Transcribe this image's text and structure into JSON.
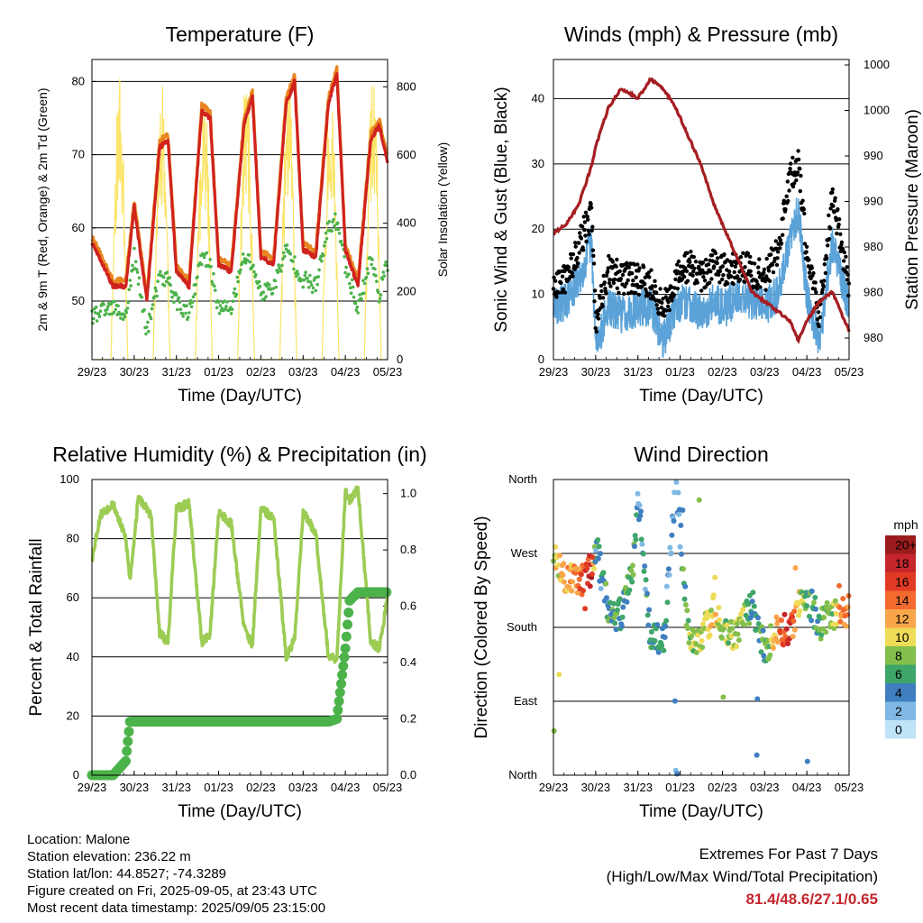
{
  "x_ticks": [
    "29/23",
    "30/23",
    "31/23",
    "01/23",
    "02/23",
    "03/23",
    "04/23",
    "05/23"
  ],
  "colors": {
    "temp_2m": "#e8851f",
    "temp_9m": "#d0231e",
    "dewpoint": "#4cb24a",
    "solar": "#fbe467",
    "wind": "#5aa2d8",
    "gust": "#000000",
    "pressure": "#a51e22",
    "rh": "#9ccc54",
    "precip": "#4cb24a"
  },
  "panels": {
    "temperature": {
      "title": "Temperature (F)",
      "xlabel": "Time (Day/UTC)",
      "ylabel_left": "2m & 9m T (Red, Orange) & 2m Td (Green)",
      "ylabel_right": "Solar Insolation (Yellow)",
      "left_ticks": [
        "50",
        "60",
        "70",
        "80"
      ],
      "right_ticks": [
        "0",
        "200",
        "400",
        "600",
        "800"
      ]
    },
    "winds": {
      "title": "Winds (mph) & Pressure (mb)",
      "xlabel": "Time (Day/UTC)",
      "ylabel_left": "Sonic Wind & Gust (Blue, Black)",
      "ylabel_right": "Station Pressure (Maroon)",
      "left_ticks": [
        "0",
        "10",
        "20",
        "30",
        "40"
      ],
      "right_ticks": [
        "980",
        "980",
        "980",
        "990",
        "990",
        "1000",
        "1000"
      ]
    },
    "humidity": {
      "title": "Relative Humidity (%) & Precipitation (in)",
      "xlabel": "Time (Day/UTC)",
      "ylabel_left": "Percent & Total Rainfall",
      "left_ticks": [
        "0",
        "20",
        "40",
        "60",
        "80",
        "100"
      ],
      "right_ticks": [
        "0.0",
        "0.2",
        "0.4",
        "0.6",
        "0.8",
        "1.0"
      ]
    },
    "direction": {
      "title": "Wind Direction",
      "xlabel": "Time (Day/UTC)",
      "ylabel_left": "Direction (Colored By Speed)",
      "left_ticks": [
        "North",
        "East",
        "South",
        "West",
        "North"
      ],
      "colorbar_title": "mph",
      "colorbar_labels": [
        "20+",
        "18",
        "16",
        "14",
        "12",
        "10",
        "8",
        "6",
        "4",
        "2",
        "0"
      ],
      "colorbar_colors": [
        "#9c1b1c",
        "#c4262c",
        "#e13a24",
        "#f26a2e",
        "#f9a64b",
        "#eedb57",
        "#83bf4b",
        "#3fa66a",
        "#3f7fc0",
        "#7fb8e4",
        "#bfe3f7"
      ]
    }
  },
  "info": {
    "location": "Location: Malone",
    "elevation": "Station elevation: 236.22 m",
    "latlon": "Station lat/lon: 44.8527; -74.3289",
    "created": "Figure created on Fri, 2025-09-05, at 23:43 UTC",
    "recent": "Most recent data timestamp: 2025/09/05 23:15:00"
  },
  "extremes": {
    "title": "Extremes For Past 7 Days",
    "subtitle": "(High/Low/Max Wind/Total Precipitation)",
    "value": "81.4/48.6/27.1/0.65"
  },
  "chart_data": [
    {
      "type": "line",
      "name": "temperature",
      "x_days": [
        0,
        0.5,
        0.8,
        1.0,
        1.3,
        1.6,
        1.8,
        2.0,
        2.3,
        2.6,
        2.8,
        3.0,
        3.3,
        3.6,
        3.8,
        4.0,
        4.3,
        4.6,
        4.8,
        5.0,
        5.3,
        5.6,
        5.8,
        6.0,
        6.3,
        6.6,
        6.8,
        7.0
      ],
      "series": [
        {
          "name": "9m T",
          "values": [
            58,
            52,
            52,
            63,
            50,
            71,
            72,
            54,
            52,
            76,
            75,
            55,
            54,
            74,
            78,
            56,
            55,
            77,
            80,
            57,
            56,
            77,
            81,
            57,
            52,
            72,
            74,
            69
          ]
        },
        {
          "name": "Td",
          "values": [
            48,
            49,
            48,
            56,
            46,
            53,
            53,
            50,
            48,
            56,
            55,
            49,
            49,
            56,
            55,
            51,
            52,
            57,
            55,
            53,
            52,
            60,
            61,
            55,
            49,
            56,
            51,
            55
          ]
        },
        {
          "name": "Solar",
          "values": [
            0,
            0,
            800,
            0,
            0,
            800,
            0,
            0,
            0,
            840,
            0,
            0,
            0,
            840,
            0,
            0,
            0,
            850,
            0,
            0,
            0,
            860,
            0,
            0,
            0,
            820,
            0,
            0
          ]
        }
      ],
      "xlim": [
        0,
        7
      ],
      "ylim_left": [
        42,
        83
      ],
      "ylim_right": [
        0,
        880
      ]
    },
    {
      "type": "line",
      "name": "winds",
      "x_days": [
        0,
        0.3,
        0.6,
        0.9,
        1.0,
        1.3,
        1.6,
        2.0,
        2.3,
        2.6,
        2.9,
        3.2,
        3.5,
        3.8,
        4.1,
        4.4,
        4.7,
        5.0,
        5.3,
        5.6,
        5.8,
        6.0,
        6.3,
        6.6,
        7.0
      ],
      "series": [
        {
          "name": "Wind",
          "values": [
            8,
            9,
            12,
            18,
            2,
            8,
            7,
            8,
            8,
            3,
            8,
            9,
            7,
            9,
            8,
            10,
            9,
            8,
            10,
            18,
            23,
            10,
            3,
            18,
            8
          ]
        },
        {
          "name": "Gust",
          "values": [
            11,
            12,
            17,
            22,
            5,
            13,
            12,
            12,
            11,
            7,
            12,
            14,
            12,
            14,
            13,
            14,
            13,
            12,
            16,
            27,
            30,
            15,
            6,
            25,
            11
          ]
        },
        {
          "name": "Pressure",
          "values": [
            986,
            987,
            989,
            993,
            995,
            999,
            1001,
            1000,
            1002,
            1001,
            999,
            996,
            993,
            989,
            986,
            983,
            980,
            979,
            978,
            977,
            975,
            977,
            979,
            980,
            976
          ]
        }
      ],
      "xlim": [
        0,
        7
      ],
      "ylim_left": [
        0,
        46
      ],
      "ylim_right": [
        973,
        1004
      ]
    },
    {
      "type": "line",
      "name": "humidity",
      "x_days": [
        0,
        0.2,
        0.5,
        0.8,
        0.9,
        1.1,
        1.4,
        1.6,
        1.8,
        2.0,
        2.3,
        2.6,
        2.8,
        3.0,
        3.3,
        3.6,
        3.8,
        4.0,
        4.3,
        4.6,
        4.8,
        5.0,
        5.3,
        5.6,
        5.8,
        6.0,
        6.1,
        6.3,
        6.6,
        6.8,
        7.0
      ],
      "series": [
        {
          "name": "RH",
          "values": [
            73,
            88,
            92,
            80,
            66,
            94,
            88,
            48,
            45,
            90,
            92,
            45,
            48,
            89,
            85,
            50,
            44,
            90,
            87,
            40,
            46,
            89,
            82,
            40,
            39,
            96,
            93,
            97,
            45,
            43,
            60
          ]
        },
        {
          "name": "Precip",
          "values": [
            0,
            0,
            0,
            0.05,
            0.19,
            0.19,
            0.19,
            0.19,
            0.19,
            0.19,
            0.19,
            0.19,
            0.19,
            0.19,
            0.19,
            0.19,
            0.19,
            0.19,
            0.19,
            0.19,
            0.19,
            0.19,
            0.19,
            0.19,
            0.2,
            0.45,
            0.62,
            0.65,
            0.65,
            0.65,
            0.65
          ]
        }
      ],
      "xlim": [
        0,
        7
      ],
      "ylim_left": [
        0,
        100
      ],
      "ylim_right": [
        0,
        1.05
      ]
    },
    {
      "type": "scatter",
      "name": "wind direction",
      "x_days": [
        0,
        0.3,
        0.6,
        0.9,
        1.0,
        1.3,
        1.6,
        1.9,
        2.0,
        2.3,
        2.6,
        2.9,
        3.2,
        3.5,
        3.8,
        4.1,
        4.4,
        4.7,
        5.0,
        5.3,
        5.6,
        5.8,
        6.0,
        6.3,
        6.6,
        6.8,
        7.0
      ],
      "series": [
        {
          "name": "Direction",
          "values": [
            270,
            240,
            235,
            250,
            280,
            200,
            195,
            260,
            330,
            170,
            160,
            360,
            170,
            165,
            200,
            170,
            175,
            210,
            150,
            175,
            180,
            205,
            220,
            185,
            195,
            200,
            200
          ]
        },
        {
          "name": "Speed",
          "values": [
            10,
            12,
            13,
            18,
            4,
            6,
            5,
            7,
            3,
            6,
            5,
            2,
            8,
            9,
            10,
            8,
            9,
            5,
            6,
            13,
            17,
            10,
            6,
            6,
            8,
            14,
            13
          ]
        }
      ],
      "xlim": [
        0,
        7
      ],
      "ylim": [
        0,
        360
      ]
    }
  ]
}
